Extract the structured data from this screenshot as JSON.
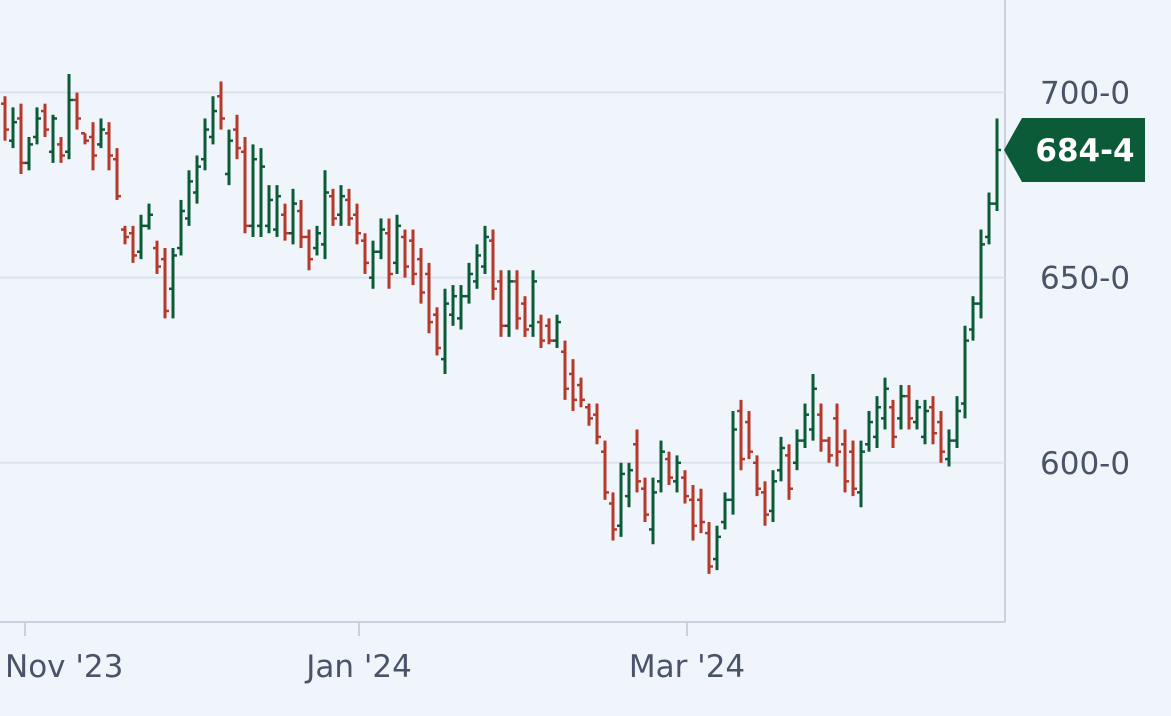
{
  "chart_data": {
    "type": "ohlc",
    "up_color": "#0b5a38",
    "down_color": "#b5392a",
    "grid": true,
    "ylim": [
      557,
      725
    ],
    "yticks": [
      {
        "value": 600,
        "label": "600-0"
      },
      {
        "value": 650,
        "label": "650-0"
      },
      {
        "value": 700,
        "label": "700-0"
      }
    ],
    "xlim": [
      -0.5,
      124.5
    ],
    "xticks": [
      {
        "value": 2.5,
        "label": "Nov '23"
      },
      {
        "value": 44.25,
        "label": "Jan '24"
      },
      {
        "value": 85.25,
        "label": "Mar '24"
      }
    ],
    "last_price_label": "684-4",
    "open": [
      697,
      687,
      693,
      681,
      688,
      695,
      684,
      686,
      684,
      698,
      689,
      688,
      686,
      689,
      682,
      663,
      662,
      657,
      664,
      658,
      655,
      647,
      658,
      666,
      673,
      682,
      688,
      699,
      678,
      690,
      684,
      664,
      664,
      664,
      663,
      667,
      662,
      668,
      661,
      658,
      659,
      672,
      667,
      671,
      667,
      660,
      650,
      657,
      662,
      654,
      661,
      660,
      655,
      651,
      640,
      628,
      640,
      639,
      645,
      649,
      653,
      660,
      649,
      637,
      649,
      643,
      637,
      638,
      637,
      633,
      630,
      624,
      621,
      615,
      613,
      603,
      589,
      583,
      591,
      605,
      593,
      582,
      595,
      601,
      595,
      596,
      590,
      590,
      581,
      574,
      584,
      590,
      614,
      611,
      600,
      592,
      587,
      598,
      602,
      600,
      606,
      609,
      613,
      606,
      612,
      605,
      603,
      592,
      605,
      607,
      612,
      615,
      612,
      618,
      611,
      607,
      615,
      611,
      601,
      606,
      616,
      636,
      643,
      661,
      670
    ],
    "high": [
      699,
      696,
      697,
      688,
      696,
      697,
      694,
      688,
      705,
      700,
      689,
      692,
      693,
      692,
      685,
      664,
      664,
      667,
      670,
      660,
      658,
      658,
      671,
      679,
      683,
      693,
      699,
      703,
      690,
      694,
      688,
      686,
      685,
      675,
      675,
      670,
      674,
      671,
      663,
      664,
      679,
      674,
      675,
      674,
      670,
      662,
      660,
      666,
      666,
      667,
      663,
      663,
      658,
      654,
      642,
      647,
      648,
      648,
      654,
      659,
      664,
      663,
      652,
      652,
      652,
      645,
      652,
      640,
      639,
      640,
      633,
      628,
      623,
      616,
      616,
      606,
      592,
      600,
      600,
      609,
      596,
      596,
      606,
      603,
      602,
      598,
      594,
      593,
      584,
      583,
      592,
      614,
      617,
      614,
      602,
      595,
      598,
      607,
      605,
      609,
      616,
      624,
      616,
      607,
      616,
      609,
      606,
      606,
      614,
      618,
      623,
      617,
      621,
      621,
      617,
      617,
      618,
      614,
      609,
      618,
      637,
      645,
      663,
      673,
      693
    ],
    "low": [
      687,
      685,
      678,
      679,
      686,
      688,
      681,
      681,
      682,
      690,
      686,
      679,
      685,
      679,
      671,
      659,
      654,
      655,
      663,
      651,
      639,
      639,
      656,
      664,
      670,
      679,
      686,
      690,
      675,
      682,
      662,
      661,
      661,
      662,
      661,
      660,
      659,
      658,
      652,
      656,
      655,
      664,
      664,
      664,
      659,
      651,
      647,
      655,
      647,
      651,
      650,
      648,
      643,
      635,
      629,
      624,
      637,
      636,
      643,
      647,
      651,
      644,
      634,
      634,
      636,
      634,
      634,
      631,
      632,
      631,
      617,
      614,
      615,
      610,
      605,
      590,
      579,
      580,
      588,
      592,
      584,
      578,
      592,
      594,
      592,
      589,
      579,
      581,
      570,
      571,
      582,
      586,
      598,
      601,
      591,
      583,
      584,
      595,
      590,
      598,
      604,
      606,
      603,
      600,
      599,
      592,
      591,
      588,
      603,
      604,
      609,
      604,
      609,
      609,
      609,
      605,
      605,
      600,
      599,
      604,
      612,
      633,
      639,
      659,
      668
    ],
    "close": [
      690,
      692,
      681,
      686,
      693,
      690,
      693,
      683,
      698,
      693,
      687,
      683,
      690,
      683,
      672,
      661,
      656,
      664,
      667,
      653,
      641,
      656,
      668,
      676,
      680,
      690,
      695,
      693,
      687,
      685,
      664,
      682,
      680,
      671,
      672,
      662,
      670,
      661,
      655,
      662,
      673,
      666,
      672,
      666,
      662,
      654,
      657,
      663,
      651,
      664,
      653,
      651,
      646,
      638,
      631,
      643,
      645,
      645,
      651,
      656,
      661,
      647,
      637,
      649,
      639,
      636,
      649,
      633,
      633,
      638,
      620,
      617,
      617,
      612,
      607,
      592,
      582,
      597,
      598,
      595,
      586,
      592,
      603,
      596,
      600,
      591,
      583,
      584,
      572,
      580,
      590,
      609,
      601,
      603,
      593,
      586,
      595,
      604,
      593,
      606,
      613,
      620,
      606,
      602,
      603,
      595,
      593,
      603,
      611,
      615,
      620,
      607,
      618,
      612,
      615,
      614,
      608,
      603,
      606,
      614,
      633,
      643,
      659,
      670,
      684.5
    ]
  }
}
